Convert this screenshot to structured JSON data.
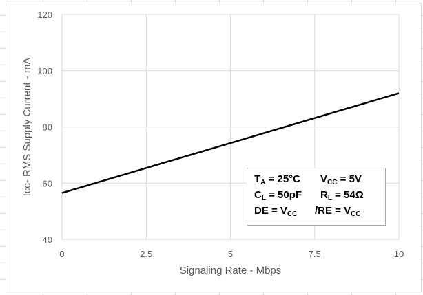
{
  "chart_data": {
    "type": "line",
    "xlabel": "Signaling Rate - Mbps",
    "ylabel": "Icc- RMS Supply Current - mA",
    "xlim": [
      0,
      10
    ],
    "ylim": [
      40,
      120
    ],
    "x_ticks": [
      "0",
      "2.5",
      "5",
      "7.5",
      "10"
    ],
    "y_ticks": [
      "40",
      "60",
      "80",
      "100",
      "120"
    ],
    "grid": true,
    "series": [
      {
        "x": [
          0,
          10
        ],
        "y": [
          56.5,
          92
        ],
        "color": "#000000"
      }
    ],
    "annotation": {
      "rows": [
        [
          {
            "main": "T",
            "sub": "A",
            "rest": " = 25°C"
          },
          {
            "main": "V",
            "sub": "CC",
            "rest": " = 5V"
          }
        ],
        [
          {
            "main": "C",
            "sub": "L",
            "rest": " = 50pF"
          },
          {
            "main": "R",
            "sub": "L",
            "rest": " = 54Ω"
          }
        ],
        [
          {
            "main": "DE = V",
            "sub": "CC",
            "rest": ""
          },
          {
            "main": "/RE = V",
            "sub": "CC",
            "rest": ""
          }
        ]
      ],
      "placement": "bottom-right"
    }
  }
}
